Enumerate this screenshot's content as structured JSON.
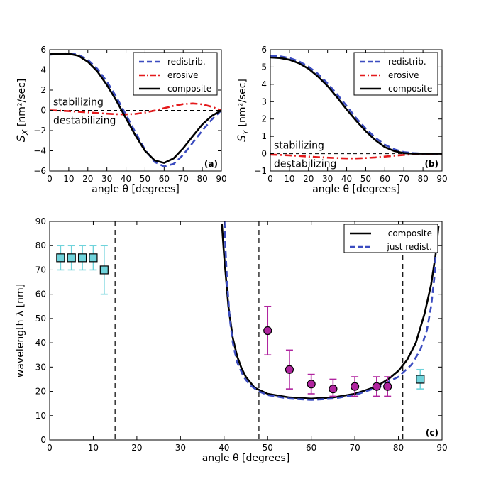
{
  "chart_data": [
    {
      "panel": "(a)",
      "type": "line",
      "xlabel": "angle θ  [degrees]",
      "ylabel_symbol": "S",
      "ylabel_sub": "X",
      "ylabel_unit": "[nm²/sec]",
      "xlim": [
        0,
        90
      ],
      "ylim": [
        -6,
        6
      ],
      "xticks": [
        0,
        10,
        20,
        30,
        40,
        50,
        60,
        70,
        80,
        90
      ],
      "yticks": [
        -6,
        -4,
        -2,
        0,
        2,
        4,
        6
      ],
      "legend_position": "top-right",
      "annotations": {
        "above": "stabilizing",
        "below": "destabilizing"
      },
      "reference_line": {
        "y": 0,
        "style": "dashed"
      },
      "series": [
        {
          "name": "redistrib.",
          "color": "#3b4cc0",
          "style": "dashed",
          "x": [
            0,
            5,
            10,
            15,
            20,
            25,
            30,
            35,
            40,
            45,
            50,
            55,
            60,
            65,
            70,
            75,
            80,
            85,
            90
          ],
          "y": [
            5.5,
            5.6,
            5.65,
            5.5,
            5.0,
            4.1,
            2.85,
            1.3,
            -0.45,
            -2.2,
            -3.9,
            -5.1,
            -5.55,
            -5.3,
            -4.4,
            -3.2,
            -2.0,
            -0.9,
            0.0
          ]
        },
        {
          "name": "erosive",
          "color": "#e41a1c",
          "style": "dashdot",
          "x": [
            0,
            5,
            10,
            15,
            20,
            25,
            30,
            35,
            40,
            45,
            50,
            55,
            60,
            65,
            70,
            75,
            80,
            85,
            90
          ],
          "y": [
            0.0,
            -0.03,
            -0.08,
            -0.14,
            -0.2,
            -0.27,
            -0.33,
            -0.38,
            -0.4,
            -0.35,
            -0.22,
            -0.02,
            0.22,
            0.45,
            0.62,
            0.68,
            0.6,
            0.35,
            0.0
          ]
        },
        {
          "name": "composite",
          "color": "#000000",
          "style": "solid",
          "x": [
            0,
            5,
            10,
            15,
            20,
            25,
            30,
            35,
            40,
            45,
            50,
            55,
            60,
            65,
            70,
            75,
            80,
            85,
            90
          ],
          "y": [
            5.55,
            5.6,
            5.6,
            5.4,
            4.8,
            3.85,
            2.5,
            0.95,
            -0.8,
            -2.5,
            -4.0,
            -4.95,
            -5.2,
            -4.75,
            -3.75,
            -2.55,
            -1.4,
            -0.55,
            0.0
          ]
        }
      ]
    },
    {
      "panel": "(b)",
      "type": "line",
      "xlabel": "angle θ  [degrees]",
      "ylabel_symbol": "S",
      "ylabel_sub": "Y",
      "ylabel_unit": "[nm²/sec]",
      "xlim": [
        0,
        90
      ],
      "ylim": [
        -1,
        6
      ],
      "xticks": [
        0,
        10,
        20,
        30,
        40,
        50,
        60,
        70,
        80,
        90
      ],
      "yticks": [
        -1,
        0,
        1,
        2,
        3,
        4,
        5,
        6
      ],
      "legend_position": "top-right",
      "annotations": {
        "above": "stabilizing",
        "below": "destabilizing"
      },
      "reference_line": {
        "y": 0,
        "style": "dashed"
      },
      "series": [
        {
          "name": "redistrib.",
          "color": "#3b4cc0",
          "style": "dashed",
          "x": [
            0,
            5,
            10,
            15,
            20,
            25,
            30,
            35,
            40,
            45,
            50,
            55,
            60,
            65,
            70,
            75,
            80,
            85,
            90
          ],
          "y": [
            5.65,
            5.62,
            5.52,
            5.33,
            5.02,
            4.6,
            4.05,
            3.42,
            2.75,
            2.05,
            1.45,
            0.92,
            0.52,
            0.25,
            0.09,
            0.03,
            0.0,
            0.0,
            0.0
          ]
        },
        {
          "name": "erosive",
          "color": "#e41a1c",
          "style": "dashdot",
          "x": [
            0,
            5,
            10,
            15,
            20,
            25,
            30,
            35,
            40,
            45,
            50,
            55,
            60,
            65,
            70,
            75,
            80,
            85,
            90
          ],
          "y": [
            -0.05,
            -0.07,
            -0.1,
            -0.13,
            -0.17,
            -0.2,
            -0.23,
            -0.25,
            -0.27,
            -0.27,
            -0.25,
            -0.22,
            -0.17,
            -0.12,
            -0.07,
            -0.03,
            -0.01,
            0.0,
            0.0
          ]
        },
        {
          "name": "composite",
          "color": "#000000",
          "style": "solid",
          "x": [
            0,
            5,
            10,
            15,
            20,
            25,
            30,
            35,
            40,
            45,
            50,
            55,
            60,
            65,
            70,
            75,
            80,
            85,
            90
          ],
          "y": [
            5.55,
            5.52,
            5.42,
            5.22,
            4.9,
            4.45,
            3.9,
            3.25,
            2.55,
            1.9,
            1.3,
            0.78,
            0.38,
            0.15,
            0.03,
            0.0,
            0.0,
            0.0,
            0.0
          ]
        }
      ]
    },
    {
      "panel": "(c)",
      "type": "line",
      "xlabel": "angle θ  [degrees]",
      "ylabel": "wavelength λ  [nm]",
      "xlim": [
        0,
        90
      ],
      "ylim": [
        0,
        90
      ],
      "xticks": [
        0,
        10,
        20,
        30,
        40,
        50,
        60,
        70,
        80,
        90
      ],
      "yticks": [
        0,
        10,
        20,
        30,
        40,
        50,
        60,
        70,
        80,
        90
      ],
      "legend_position": "top-right",
      "vertical_lines": [
        15,
        48,
        81
      ],
      "series": [
        {
          "name": "composite",
          "color": "#000000",
          "style": "solid",
          "x": [
            39.5,
            40,
            41,
            42,
            43,
            44,
            45,
            47,
            50,
            55,
            60,
            65,
            70,
            75,
            78,
            80,
            82,
            84,
            86,
            87.5,
            88.5,
            89.2
          ],
          "y": [
            89,
            76,
            55,
            42,
            34.5,
            29.5,
            26,
            21.5,
            19,
            17.5,
            17,
            17.5,
            19,
            22,
            25.5,
            28.5,
            33,
            40,
            52,
            64,
            76,
            88
          ]
        },
        {
          "name": "just redist.",
          "color": "#3b4cc0",
          "style": "dashed",
          "x": [
            40.1,
            40.3,
            40.7,
            41.3,
            42,
            43,
            44.5,
            46,
            48,
            50,
            55,
            60,
            65,
            70,
            75,
            80,
            83,
            85,
            86.5,
            87.5,
            88.3,
            88.8
          ],
          "y": [
            90,
            80,
            65,
            50,
            40,
            32,
            26,
            22.5,
            20,
            18.5,
            17,
            16.5,
            17,
            18.5,
            21.5,
            26,
            31,
            37,
            45,
            55,
            68,
            86
          ]
        }
      ],
      "points": [
        {
          "group": "squares",
          "color": "#6fd3db",
          "edge": "#000000",
          "x": [
            2.5,
            5,
            7.5,
            10,
            12.5,
            85
          ],
          "y": [
            75,
            75,
            75,
            75,
            70,
            25
          ],
          "err_low": [
            70,
            70,
            70,
            70,
            60,
            21
          ],
          "err_high": [
            80,
            80,
            80,
            80,
            80,
            29
          ]
        },
        {
          "group": "circles",
          "color": "#b0249f",
          "edge": "#000000",
          "x": [
            50,
            55,
            60,
            65,
            70,
            75,
            77.5
          ],
          "y": [
            45,
            29,
            23,
            21,
            22,
            22,
            22
          ],
          "err_low": [
            35,
            21,
            19,
            18,
            18,
            18,
            18
          ],
          "err_high": [
            55,
            37,
            27,
            25,
            26,
            26,
            26
          ]
        }
      ]
    }
  ]
}
